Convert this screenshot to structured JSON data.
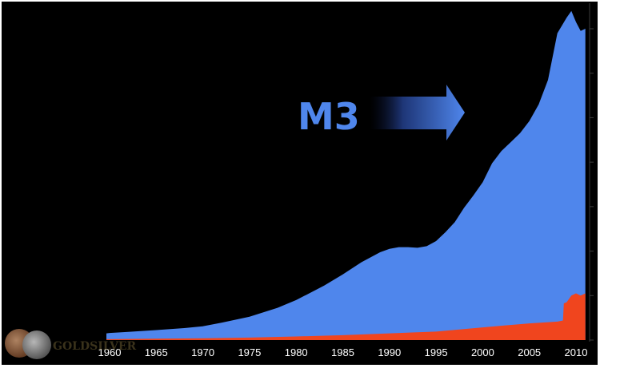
{
  "chart_data": {
    "type": "area",
    "title": "",
    "xlabel": "",
    "ylabel": "",
    "xlim": [
      1960,
      2011
    ],
    "ylim": [
      0,
      15
    ],
    "grid": false,
    "y_axis_side": "right",
    "x_ticks": [
      1960,
      1965,
      1970,
      1975,
      1980,
      1985,
      1990,
      1995,
      2000,
      2005,
      2010
    ],
    "y_ticks": [
      0,
      2,
      4,
      6,
      8,
      10,
      12,
      14
    ],
    "annotation": "M3",
    "series": [
      {
        "color": "#4f86ec",
        "points": [
          [
            1959,
            0.3
          ],
          [
            1960,
            0.32
          ],
          [
            1962,
            0.37
          ],
          [
            1965,
            0.45
          ],
          [
            1968,
            0.54
          ],
          [
            1970,
            0.62
          ],
          [
            1972,
            0.78
          ],
          [
            1975,
            1.05
          ],
          [
            1978,
            1.45
          ],
          [
            1980,
            1.8
          ],
          [
            1983,
            2.45
          ],
          [
            1985,
            2.95
          ],
          [
            1987,
            3.5
          ],
          [
            1989,
            3.95
          ],
          [
            1990,
            4.1
          ],
          [
            1991,
            4.18
          ],
          [
            1992,
            4.18
          ],
          [
            1993,
            4.15
          ],
          [
            1994,
            4.22
          ],
          [
            1995,
            4.45
          ],
          [
            1996,
            4.85
          ],
          [
            1997,
            5.3
          ],
          [
            1998,
            5.95
          ],
          [
            1999,
            6.5
          ],
          [
            2000,
            7.1
          ],
          [
            2001,
            7.95
          ],
          [
            2002,
            8.5
          ],
          [
            2003,
            8.9
          ],
          [
            2004,
            9.3
          ],
          [
            2005,
            9.85
          ],
          [
            2006,
            10.6
          ],
          [
            2007,
            11.7
          ],
          [
            2008,
            13.8
          ],
          [
            2009,
            14.5
          ],
          [
            2009.5,
            14.8
          ],
          [
            2010,
            14.3
          ],
          [
            2010.5,
            13.9
          ],
          [
            2011,
            14.0
          ]
        ]
      },
      {
        "color": "#f0451e",
        "points": [
          [
            1959,
            0.04
          ],
          [
            1965,
            0.06
          ],
          [
            1970,
            0.08
          ],
          [
            1975,
            0.11
          ],
          [
            1980,
            0.16
          ],
          [
            1985,
            0.22
          ],
          [
            1990,
            0.3
          ],
          [
            1995,
            0.38
          ],
          [
            2000,
            0.57
          ],
          [
            2005,
            0.75
          ],
          [
            2008,
            0.83
          ],
          [
            2008.6,
            0.88
          ],
          [
            2008.7,
            1.65
          ],
          [
            2009,
            1.7
          ],
          [
            2009.5,
            2.0
          ],
          [
            2010,
            2.1
          ],
          [
            2010.5,
            2.0
          ],
          [
            2011,
            2.1
          ]
        ]
      }
    ]
  }
}
